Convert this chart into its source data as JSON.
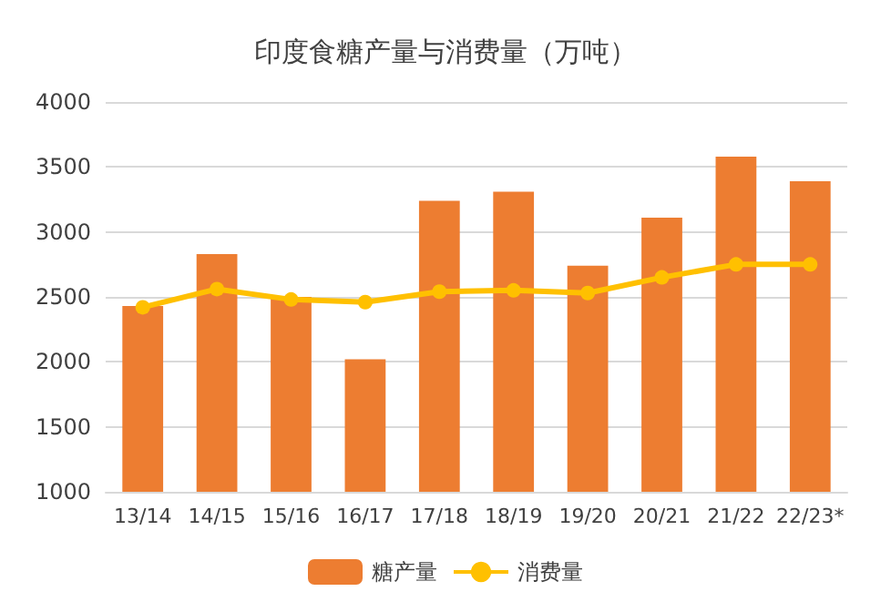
{
  "chart_data": {
    "type": "bar",
    "title": "印度食糖产量与消费量（万吨）",
    "categories": [
      "13/14",
      "14/15",
      "15/16",
      "16/17",
      "17/18",
      "18/19",
      "19/20",
      "20/21",
      "21/22",
      "22/23*"
    ],
    "series": [
      {
        "name": "糖产量",
        "color": "#ed7d31",
        "values": [
          2430,
          2830,
          2500,
          2020,
          3240,
          3310,
          2740,
          3110,
          3580,
          3390
        ]
      },
      {
        "name": "消费量",
        "type": "line",
        "color": "#ffc000",
        "values": [
          2420,
          2560,
          2480,
          2460,
          2540,
          2550,
          2530,
          2650,
          2750,
          2750
        ]
      }
    ],
    "ylim": [
      1000,
      4000
    ],
    "yticks": [
      1000,
      1500,
      2000,
      2500,
      3000,
      3500,
      4000
    ],
    "grid": "y",
    "legend": "bottom",
    "marker": "circle"
  }
}
